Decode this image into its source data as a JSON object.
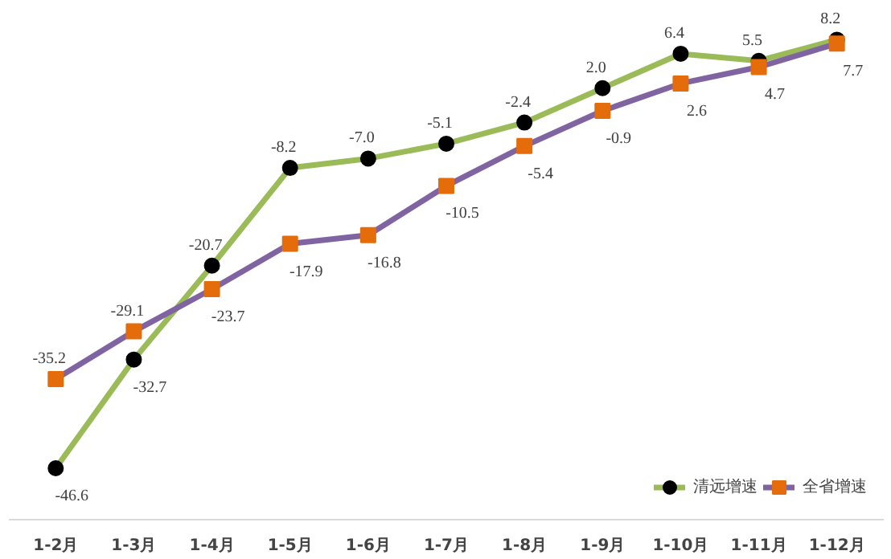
{
  "chart_data": {
    "type": "line",
    "categories": [
      "1-2月",
      "1-3月",
      "1-4月",
      "1-5月",
      "1-6月",
      "1-7月",
      "1-8月",
      "1-9月",
      "1-10月",
      "1-11月",
      "1-12月"
    ],
    "series": [
      {
        "name": "清远增速",
        "color": "#9bbb59",
        "marker": "circle",
        "values": [
          -46.6,
          -32.7,
          -20.7,
          -8.2,
          -7.0,
          -5.1,
          -2.4,
          2.0,
          6.4,
          5.5,
          8.2
        ],
        "value_labels": [
          "-46.6",
          "-32.7",
          "-20.7",
          "-8.2",
          "-7.0",
          "-5.1",
          "-2.4",
          "2.0",
          "6.4",
          "5.5",
          "8.2"
        ]
      },
      {
        "name": "全省增速",
        "color": "#8064a2",
        "marker": "square",
        "values": [
          -35.2,
          -29.1,
          -23.7,
          -17.9,
          -16.8,
          -10.5,
          -5.4,
          -0.9,
          2.6,
          4.7,
          7.7
        ],
        "value_labels": [
          "-35.2",
          "-29.1",
          "-23.7",
          "-17.9",
          "-16.8",
          "-10.5",
          "-5.4",
          "-0.9",
          "2.6",
          "4.7",
          "7.7"
        ]
      }
    ],
    "legend": "bottom right",
    "grid": false
  }
}
